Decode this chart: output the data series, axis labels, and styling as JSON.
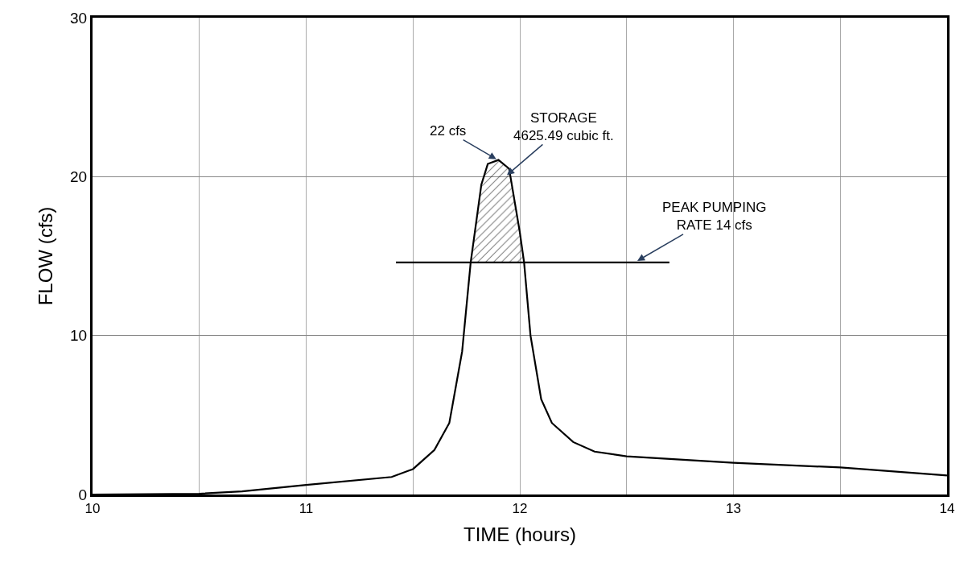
{
  "chart_data": {
    "type": "line",
    "xlabel": "TIME (hours)",
    "ylabel": "FLOW (cfs)",
    "xlim": [
      10,
      14
    ],
    "ylim": [
      0,
      30
    ],
    "xticks": [
      10,
      {
        "value": 10.5,
        "label": null
      },
      11,
      {
        "value": 11.5,
        "label": null
      },
      12,
      {
        "value": 12.5,
        "label": null
      },
      13,
      {
        "value": 13.5,
        "label": null
      },
      14
    ],
    "yticks": [
      0,
      10,
      20,
      30
    ],
    "grid": true,
    "marker": "none",
    "line_style": "solid",
    "series": [
      {
        "color": "#000000",
        "x": [
          10,
          10.5,
          10.7,
          11,
          11.4,
          11.5,
          11.6,
          11.67,
          11.73,
          11.77,
          11.82,
          11.85,
          11.9,
          11.95,
          12.0,
          12.02,
          12.05,
          12.1,
          12.15,
          12.25,
          12.35,
          12.5,
          13,
          13.5,
          14
        ],
        "values": [
          0,
          0.05,
          0.2,
          0.6,
          1.1,
          1.6,
          2.8,
          4.5,
          9,
          14.6,
          19.5,
          20.8,
          21.05,
          20.5,
          16.5,
          14.6,
          10,
          6,
          4.5,
          3.3,
          2.7,
          2.4,
          2.0,
          1.7,
          1.2
        ]
      },
      {
        "type": "area",
        "color": "#000000",
        "x": [
          11.77,
          11.82,
          11.85,
          11.9,
          11.95,
          12.0,
          12.02
        ],
        "values": [
          14.6,
          19.5,
          20.8,
          21.05,
          20.5,
          16.5,
          14.6
        ]
      },
      {
        "type": "line",
        "color": "#000000",
        "x": [
          11.42,
          12.7
        ],
        "values": [
          14.6,
          14.6
        ]
      }
    ],
    "annotations": [
      {
        "text": "22 cfs",
        "x": 11.89,
        "y": 21.1
      },
      {
        "text": "STORAGE\n4625.49 cubic ft.",
        "x": 11.94,
        "y": 20.1
      },
      {
        "text": "PEAK PUMPING\nRATE 14 cfs",
        "x": 12.55,
        "y": 14.7
      }
    ]
  }
}
